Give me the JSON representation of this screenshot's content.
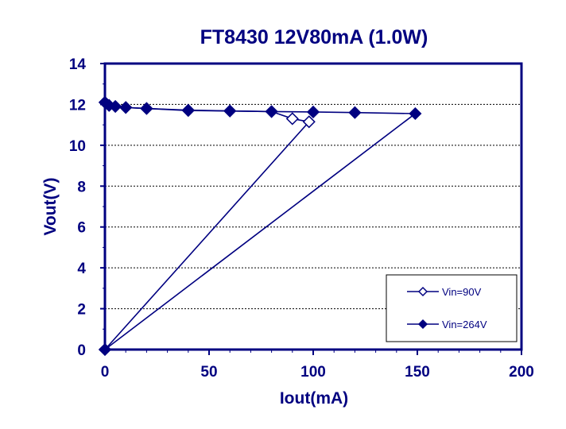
{
  "chart_data": {
    "type": "line",
    "title": "FT8430 12V80mA (1.0W)",
    "xlabel": "Iout(mA)",
    "ylabel": "Vout(V)",
    "xlim": [
      0,
      200
    ],
    "ylim": [
      0,
      14
    ],
    "xticks": [
      0,
      50,
      100,
      150,
      200
    ],
    "yticks": [
      0,
      2,
      4,
      6,
      8,
      10,
      12,
      14
    ],
    "grid": "horizontal dashed",
    "legend_position": "bottom-right",
    "colors": {
      "primary": "#000080",
      "background": "#ffffff"
    },
    "series": [
      {
        "name": "Vin=90V",
        "marker": "open-diamond",
        "points": [
          [
            0,
            12.1
          ],
          [
            2,
            11.95
          ],
          [
            5,
            11.9
          ],
          [
            10,
            11.85
          ],
          [
            20,
            11.8
          ],
          [
            40,
            11.7
          ],
          [
            60,
            11.68
          ],
          [
            80,
            11.65
          ],
          [
            90,
            11.3
          ],
          [
            98,
            11.15
          ],
          [
            0,
            0
          ]
        ]
      },
      {
        "name": "Vin=264V",
        "marker": "filled-diamond",
        "points": [
          [
            0,
            12.1
          ],
          [
            2,
            11.95
          ],
          [
            5,
            11.9
          ],
          [
            10,
            11.85
          ],
          [
            20,
            11.8
          ],
          [
            40,
            11.72
          ],
          [
            60,
            11.68
          ],
          [
            80,
            11.65
          ],
          [
            100,
            11.63
          ],
          [
            120,
            11.6
          ],
          [
            149,
            11.55
          ],
          [
            0,
            0
          ]
        ]
      }
    ]
  }
}
